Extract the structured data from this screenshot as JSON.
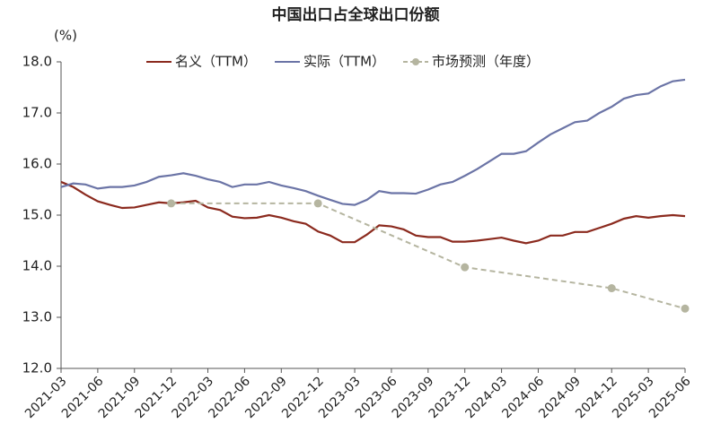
{
  "chart_data": {
    "type": "line",
    "title": "中国出口占全球出口份额",
    "y_label": "(%)",
    "categories": [
      "2021-03",
      null,
      null,
      "2021-06",
      null,
      null,
      "2021-09",
      null,
      null,
      "2021-12",
      null,
      null,
      "2022-03",
      null,
      null,
      "2022-06",
      null,
      null,
      "2022-09",
      null,
      null,
      "2022-12",
      null,
      null,
      "2023-03",
      null,
      null,
      "2023-06",
      null,
      null,
      "2023-09",
      null,
      null,
      "2023-12",
      null,
      null,
      "2024-03",
      null,
      null,
      "2024-06",
      null,
      null,
      "2024-09",
      null,
      null,
      "2024-12",
      null,
      null,
      "2025-03",
      null,
      null,
      "2025-06"
    ],
    "series": [
      {
        "name": "名义（TTM）",
        "color": "#8b2a1e",
        "dash": false,
        "values": [
          15.65,
          15.55,
          15.4,
          15.27,
          15.2,
          15.14,
          15.15,
          15.2,
          15.25,
          15.23,
          15.25,
          15.28,
          15.15,
          15.1,
          14.97,
          14.94,
          14.95,
          15.0,
          14.95,
          14.88,
          14.83,
          14.68,
          14.6,
          14.47,
          14.47,
          14.62,
          14.8,
          14.78,
          14.72,
          14.6,
          14.57,
          14.57,
          14.48,
          14.48,
          14.5,
          14.53,
          14.56,
          14.5,
          14.45,
          14.5,
          14.6,
          14.6,
          14.67,
          14.67,
          14.75,
          14.83,
          14.93,
          14.98,
          14.95,
          14.98,
          15.0,
          14.98
        ]
      },
      {
        "name": "实际（TTM）",
        "color": "#6b74a6",
        "dash": false,
        "values": [
          15.55,
          15.62,
          15.6,
          15.52,
          15.55,
          15.55,
          15.58,
          15.65,
          15.75,
          15.78,
          15.82,
          15.77,
          15.7,
          15.65,
          15.55,
          15.6,
          15.6,
          15.65,
          15.58,
          15.53,
          15.47,
          15.38,
          15.3,
          15.22,
          15.2,
          15.3,
          15.47,
          15.43,
          15.43,
          15.42,
          15.5,
          15.6,
          15.65,
          15.77,
          15.9,
          16.05,
          16.2,
          16.2,
          16.25,
          16.42,
          16.58,
          16.7,
          16.82,
          16.85,
          17.0,
          17.12,
          17.28,
          17.35,
          17.38,
          17.52,
          17.62,
          17.65
        ]
      },
      {
        "name": "市场预测（年度）",
        "color": "#b5b5a0",
        "dash": true,
        "x": [
          "2021-12",
          "2022-12",
          "2023-12",
          "2024-12",
          "2025-06"
        ],
        "values": [
          15.23,
          15.23,
          13.98,
          13.57,
          13.17
        ]
      }
    ],
    "ylim": [
      12,
      18
    ],
    "yticks": [
      {
        "value": 12,
        "label": "12.0"
      },
      {
        "value": 13,
        "label": "13.0"
      },
      {
        "value": 14,
        "label": "14.0"
      },
      {
        "value": 15,
        "label": "15.0"
      },
      {
        "value": 16,
        "label": "16.0"
      },
      {
        "value": 17,
        "label": "17.0"
      },
      {
        "value": 18,
        "label": "18.0"
      }
    ],
    "grid": false,
    "legend": "top"
  }
}
